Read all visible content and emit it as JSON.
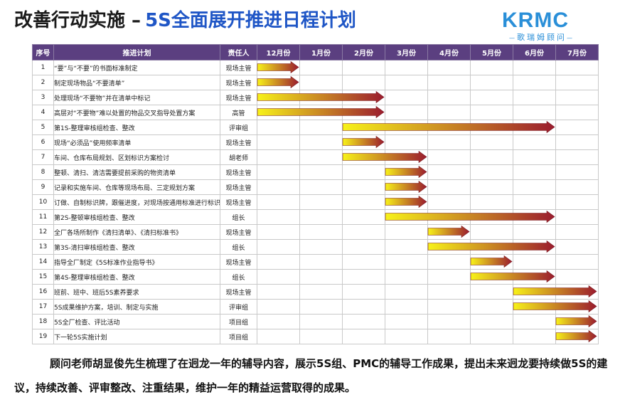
{
  "header": {
    "title_part1": "改善行动实施 –",
    "title_part2": "5S全面展开推进日程计划",
    "logo_brand": "KRMC",
    "logo_subtitle": "歌瑞姆顾问"
  },
  "table": {
    "columns": [
      "序号",
      "推进计划",
      "责任人",
      "12月份",
      "1月份",
      "2月份",
      "3月份",
      "4月份",
      "5月份",
      "6月份",
      "7月份"
    ],
    "rows": [
      {
        "no": "1",
        "plan": "“要”与“不要”的书面标准制定",
        "owner": "现场主管",
        "start": 0,
        "end": 1
      },
      {
        "no": "2",
        "plan": "制定现场物品“不要清单”",
        "owner": "现场主管",
        "start": 0,
        "end": 1
      },
      {
        "no": "3",
        "plan": "处理现场“不要物”并在清单中标记",
        "owner": "现场主管",
        "start": 0,
        "end": 3
      },
      {
        "no": "4",
        "plan": "高层对“不要物”难以处置的物品交叉指导处置方案",
        "owner": "高管",
        "start": 0,
        "end": 3
      },
      {
        "no": "5",
        "plan": "第1S-整理审核组检查、整改",
        "owner": "评审组",
        "start": 2,
        "end": 7
      },
      {
        "no": "6",
        "plan": "现场“必须品”使用频率清单",
        "owner": "现场主管",
        "start": 2,
        "end": 3
      },
      {
        "no": "7",
        "plan": "车间、仓库布局规划、区划标识方案检讨",
        "owner": "胡老师",
        "start": 2,
        "end": 4
      },
      {
        "no": "8",
        "plan": "整顿、清扫、清洁需要提前采购的物资清单",
        "owner": "现场主管",
        "start": 3,
        "end": 4
      },
      {
        "no": "9",
        "plan": "记录和实施车间、仓库等现场布局、三定规划方案",
        "owner": "现场主管",
        "start": 3,
        "end": 4
      },
      {
        "no": "10",
        "plan": "订做、自制标识牌，跟催进度，对现场按通用标准进行标识",
        "owner": "现场主管",
        "start": 3,
        "end": 4
      },
      {
        "no": "11",
        "plan": "第2S-整顿审核组检查、整改",
        "owner": "组长",
        "start": 3,
        "end": 7
      },
      {
        "no": "12",
        "plan": "全厂各场所制作《清扫清单》、《清扫标准书》",
        "owner": "现场主管",
        "start": 4,
        "end": 5
      },
      {
        "no": "13",
        "plan": "第3S-清扫审核组检查、整改",
        "owner": "组长",
        "start": 4,
        "end": 7
      },
      {
        "no": "14",
        "plan": "指导全厂制定《5S标准作业指导书》",
        "owner": "现场主管",
        "start": 5,
        "end": 6
      },
      {
        "no": "15",
        "plan": "第4S-整理审核组检查、整改",
        "owner": "组长",
        "start": 5,
        "end": 7
      },
      {
        "no": "16",
        "plan": "班前、班中、班后5S素养要求",
        "owner": "现场主管",
        "start": 6,
        "end": 8
      },
      {
        "no": "17",
        "plan": "5S成果维护方案，培训、制定与实施",
        "owner": "评审组",
        "start": 6,
        "end": 8
      },
      {
        "no": "18",
        "plan": "5S全厂检查、评比活动",
        "owner": "项目组",
        "start": 7,
        "end": 8
      },
      {
        "no": "19",
        "plan": "下一轮5S实施计划",
        "owner": "项目组",
        "start": 7,
        "end": 8
      }
    ]
  },
  "caption": {
    "text": "顾问老师胡显俊先生梳理了在迥龙一年的辅导内容，展示5S组、PMC的辅导工作成果，提出未来迥龙要持续做5S的建议，持续改善、评审整改、注重结果，维护一年的精益运营取得的成果。"
  },
  "colors": {
    "header_bg": "#5b3f80",
    "title_blue": "#1f56c6",
    "bar_start": "#f7f219",
    "bar_end": "#9b1c2e"
  }
}
